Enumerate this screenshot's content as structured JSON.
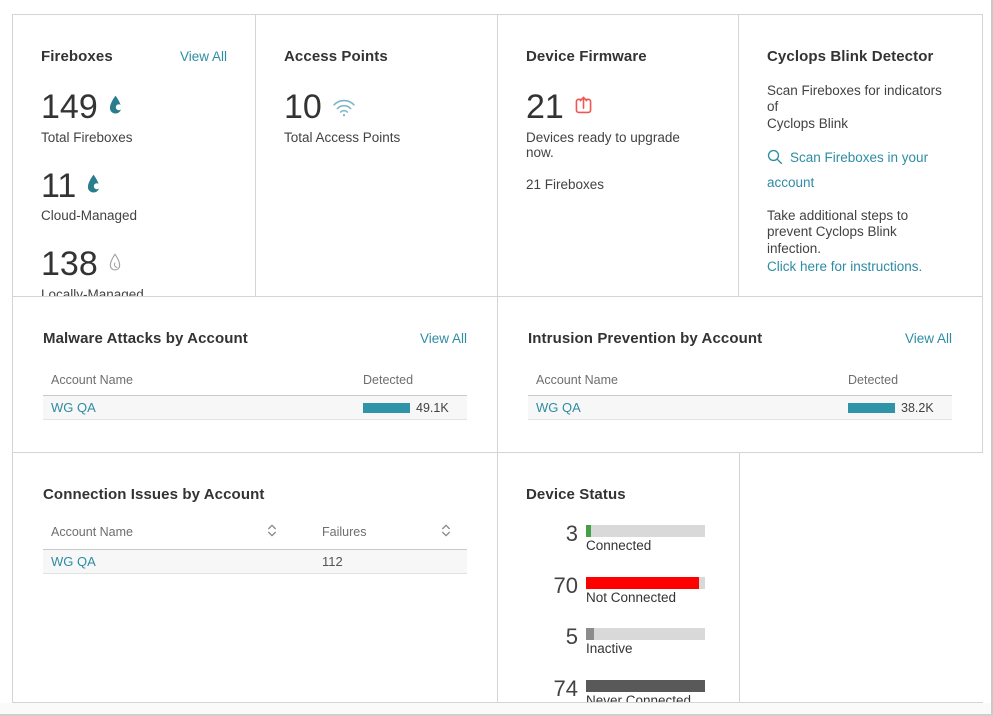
{
  "theme": {
    "link": "#2e8ca3",
    "teal_icon": "#2a7d8f",
    "teal_bar": "#2f94a8",
    "wifi_icon": "#7db6c6",
    "upload_icon": "#ef5753",
    "track": "#d9d9d9",
    "border": "#d4d4d4"
  },
  "cards": {
    "fireboxes": {
      "title": "Fireboxes",
      "view_all": "View All",
      "stats": [
        {
          "value": "149",
          "label": "Total Fireboxes",
          "icon": "flame-icon",
          "icon_style": "filled"
        },
        {
          "value": "11",
          "label": "Cloud-Managed",
          "icon": "flame-icon",
          "icon_style": "filled"
        },
        {
          "value": "138",
          "label": "Locally-Managed",
          "icon": "flame-icon",
          "icon_style": "outline"
        }
      ]
    },
    "access_points": {
      "title": "Access Points",
      "value": "10",
      "label": "Total Access Points",
      "icon": "wifi-icon"
    },
    "device_firmware": {
      "title": "Device Firmware",
      "value": "21",
      "label": "Devices ready to upgrade now.",
      "sublabel": "21 Fireboxes",
      "icon": "upgrade-icon"
    },
    "cyclops": {
      "title": "Cyclops Blink Detector",
      "description": "Scan Fireboxes for indicators of\nCyclops Blink",
      "scan_link": "Scan Fireboxes in your\naccount",
      "note": "Take additional steps to\nprevent Cyclops Blink infection.",
      "instructions_link": "Click here for instructions."
    },
    "malware": {
      "title": "Malware Attacks by Account",
      "view_all": "View All",
      "columns": {
        "account": "Account Name",
        "detected": "Detected"
      },
      "rows": [
        {
          "account": "WG QA",
          "detected": "49.1K",
          "bar_pct": 100
        }
      ]
    },
    "intrusion": {
      "title": "Intrusion Prevention by Account",
      "view_all": "View All",
      "columns": {
        "account": "Account Name",
        "detected": "Detected"
      },
      "rows": [
        {
          "account": "WG QA",
          "detected": "38.2K",
          "bar_pct": 100
        }
      ]
    },
    "connection": {
      "title": "Connection Issues by Account",
      "columns": {
        "account": "Account Name",
        "failures": "Failures"
      },
      "rows": [
        {
          "account": "WG QA",
          "failures": "112"
        }
      ]
    },
    "device_status": {
      "title": "Device Status",
      "statuses": [
        {
          "value": "3",
          "label": "Connected",
          "color": "#43a047",
          "pct": 4
        },
        {
          "value": "70",
          "label": "Not Connected",
          "color": "#fe0000",
          "pct": 95
        },
        {
          "value": "5",
          "label": "Inactive",
          "color": "#8c8c8c",
          "pct": 7
        },
        {
          "value": "74",
          "label": "Never Connected",
          "color": "#595959",
          "pct": 100
        }
      ]
    }
  }
}
